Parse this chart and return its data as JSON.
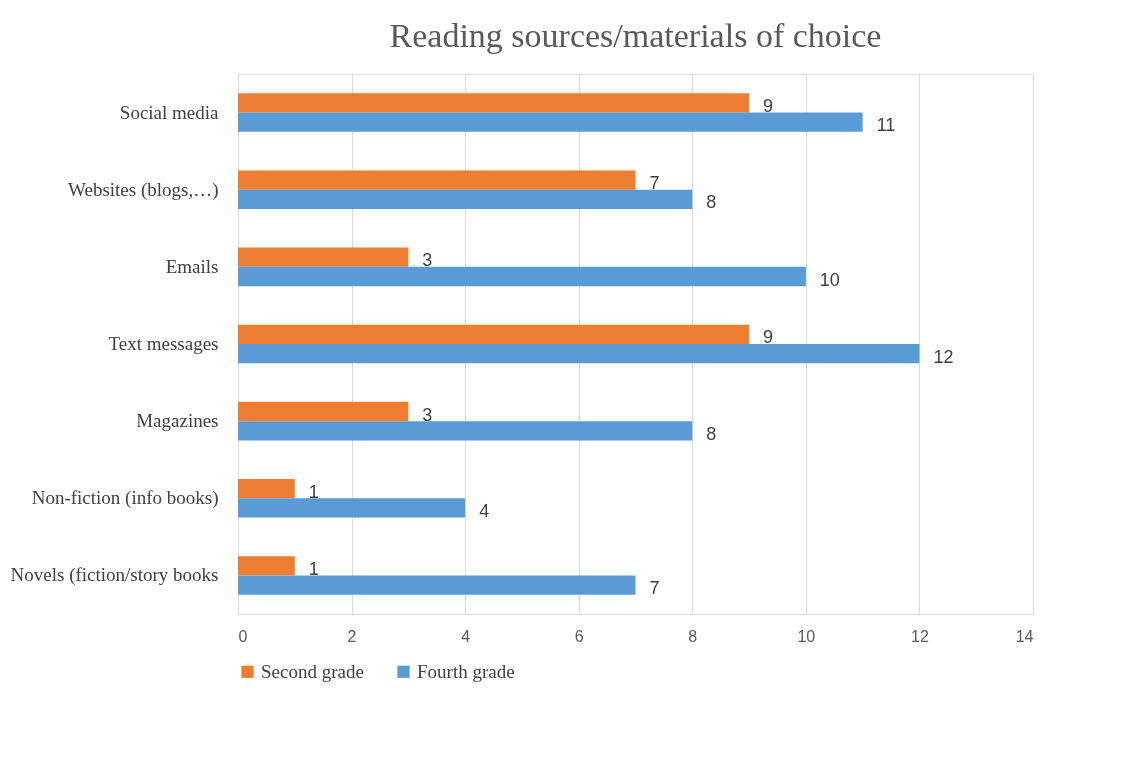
{
  "chart_data": {
    "type": "bar",
    "orientation": "horizontal",
    "title": "Reading sources/materials of choice",
    "categories": [
      "Social media",
      "Websites (blogs,…)",
      "Emails",
      "Text messages",
      "Magazines",
      "Non-fiction (info books)",
      "Novels (fiction/story books"
    ],
    "series": [
      {
        "name": "Second grade",
        "color": "#ed7d31",
        "values": [
          9,
          7,
          3,
          9,
          3,
          1,
          1
        ]
      },
      {
        "name": "Fourth grade",
        "color": "#5b9bd5",
        "values": [
          11,
          8,
          10,
          12,
          8,
          4,
          7
        ]
      }
    ],
    "xlim": [
      0,
      14
    ],
    "xticks": [
      0,
      2,
      4,
      6,
      8,
      10,
      12,
      14
    ],
    "grid": "x",
    "legend": "bottom",
    "data_labels": true
  }
}
